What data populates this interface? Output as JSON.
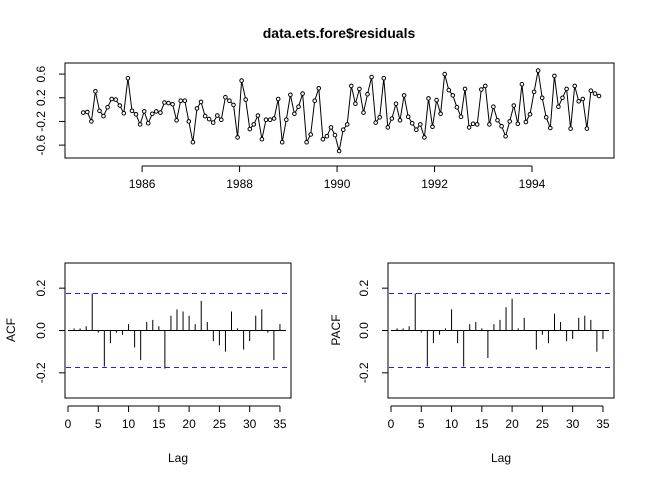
{
  "chart_data": [
    {
      "type": "line",
      "title": "data.ets.fore$residuals",
      "xlabel": "",
      "ylabel": "",
      "xlim": [
        1984.5,
        1995.6
      ],
      "ylim": [
        -0.75,
        0.72
      ],
      "x_ticks": [
        1986,
        1988,
        1990,
        1992,
        1994
      ],
      "y_ticks": [
        -0.6,
        -0.2,
        0.2,
        0.6
      ],
      "y_tick_labels": [
        "-0.6",
        "-0.2",
        "0.2",
        "0.6"
      ],
      "x_start": 1984.792,
      "x_step": 0.0833333,
      "values": [
        -0.05,
        -0.04,
        -0.2,
        0.31,
        -0.02,
        -0.11,
        0.04,
        0.18,
        0.17,
        0.07,
        -0.06,
        0.53,
        -0.02,
        -0.08,
        -0.25,
        -0.03,
        -0.23,
        -0.07,
        -0.03,
        -0.05,
        0.12,
        0.11,
        0.09,
        -0.18,
        0.15,
        0.15,
        -0.2,
        -0.55,
        0.02,
        0.13,
        -0.11,
        -0.16,
        -0.22,
        -0.1,
        -0.17,
        0.21,
        0.15,
        0.08,
        -0.47,
        0.49,
        0.17,
        -0.33,
        -0.25,
        -0.1,
        -0.5,
        -0.17,
        -0.17,
        -0.15,
        0.18,
        -0.55,
        -0.17,
        0.25,
        -0.07,
        0.05,
        0.27,
        -0.55,
        -0.42,
        0.15,
        0.36,
        -0.5,
        -0.45,
        -0.3,
        -0.43,
        -0.7,
        -0.34,
        -0.25,
        0.4,
        0.1,
        0.35,
        -0.05,
        0.26,
        0.55,
        -0.22,
        -0.13,
        0.53,
        -0.3,
        -0.15,
        0.1,
        -0.18,
        0.24,
        -0.12,
        -0.23,
        -0.34,
        -0.25,
        -0.47,
        0.19,
        -0.29,
        0.16,
        -0.07,
        0.6,
        0.33,
        0.24,
        0.04,
        -0.12,
        0.35,
        -0.3,
        -0.24,
        -0.25,
        0.34,
        0.4,
        -0.25,
        0.05,
        -0.18,
        -0.28,
        -0.45,
        -0.2,
        0.07,
        -0.24,
        0.43,
        -0.21,
        -0.08,
        0.3,
        0.66,
        0.2,
        -0.13,
        -0.31,
        0.57,
        0.05,
        0.2,
        0.35,
        -0.32,
        0.4,
        0.14,
        0.18,
        -0.32,
        0.32,
        0.27,
        0.23
      ]
    },
    {
      "type": "bar",
      "ylabel": "ACF",
      "xlabel": "Lag",
      "xlim": [
        0,
        36
      ],
      "ylim": [
        -0.3,
        0.3
      ],
      "x_ticks": [
        0,
        5,
        10,
        15,
        20,
        25,
        30,
        35
      ],
      "y_ticks": [
        -0.2,
        0.0,
        0.2
      ],
      "y_tick_labels": [
        "-0.2",
        "0.0",
        "0.2"
      ],
      "ci": 0.175,
      "lags": [
        1,
        2,
        3,
        4,
        5,
        6,
        7,
        8,
        9,
        10,
        11,
        12,
        13,
        14,
        15,
        16,
        17,
        18,
        19,
        20,
        21,
        22,
        23,
        24,
        25,
        26,
        27,
        28,
        29,
        30,
        31,
        32,
        33,
        34,
        35
      ],
      "values": [
        0.01,
        0.01,
        0.02,
        0.175,
        -0.01,
        -0.17,
        -0.06,
        -0.01,
        -0.02,
        0.03,
        -0.08,
        -0.14,
        0.04,
        0.05,
        0.02,
        -0.18,
        0.07,
        0.1,
        0.09,
        0.07,
        0.03,
        0.14,
        0.04,
        -0.05,
        -0.07,
        -0.1,
        0.09,
        0.01,
        -0.09,
        -0.05,
        0.07,
        0.1,
        -0.01,
        -0.14,
        0.03
      ]
    },
    {
      "type": "bar",
      "ylabel": "PACF",
      "xlabel": "Lag",
      "xlim": [
        0,
        36
      ],
      "ylim": [
        -0.3,
        0.3
      ],
      "x_ticks": [
        0,
        5,
        10,
        15,
        20,
        25,
        30,
        35
      ],
      "y_ticks": [
        -0.2,
        0.0,
        0.2
      ],
      "y_tick_labels": [
        "-0.2",
        "0.0",
        "0.2"
      ],
      "ci": 0.175,
      "lags": [
        1,
        2,
        3,
        4,
        5,
        6,
        7,
        8,
        9,
        10,
        11,
        12,
        13,
        14,
        15,
        16,
        17,
        18,
        19,
        20,
        21,
        22,
        23,
        24,
        25,
        26,
        27,
        28,
        29,
        30,
        31,
        32,
        33,
        34,
        35
      ],
      "values": [
        0.01,
        0.01,
        0.02,
        0.175,
        -0.01,
        -0.17,
        -0.06,
        -0.02,
        0.01,
        0.1,
        -0.06,
        -0.17,
        0.03,
        0.04,
        0.01,
        -0.13,
        0.03,
        0.05,
        0.11,
        0.15,
        0.01,
        0.06,
        0.0,
        -0.09,
        -0.02,
        -0.06,
        0.08,
        0.04,
        -0.05,
        -0.04,
        0.06,
        0.07,
        0.05,
        -0.1,
        -0.04
      ]
    }
  ]
}
